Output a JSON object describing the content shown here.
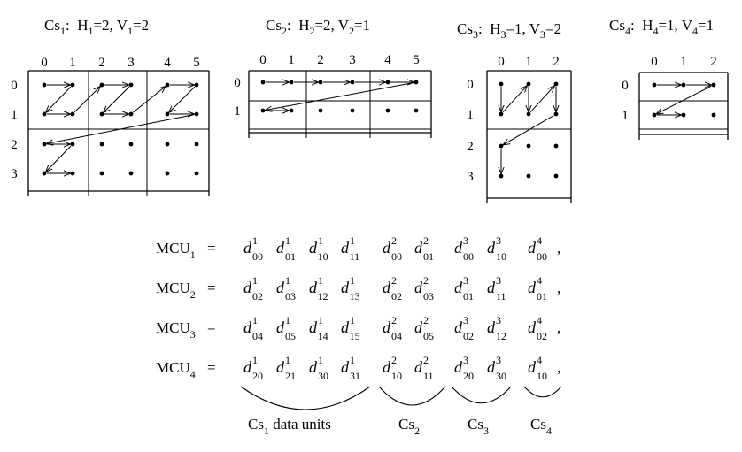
{
  "components": [
    {
      "id": "cs1",
      "title": {
        "base": "Cs",
        "idx": "1",
        "H": "2",
        "V": "2"
      },
      "col_labels": [
        "0",
        "1",
        "2",
        "3",
        "4",
        "5"
      ],
      "row_labels": [
        "0",
        "1",
        "2",
        "3"
      ]
    },
    {
      "id": "cs2",
      "title": {
        "base": "Cs",
        "idx": "2",
        "H": "2",
        "V": "1"
      },
      "col_labels": [
        "0",
        "1",
        "2",
        "3",
        "4",
        "5"
      ],
      "row_labels": [
        "0",
        "1"
      ]
    },
    {
      "id": "cs3",
      "title": {
        "base": "Cs",
        "idx": "3",
        "H": "1",
        "V": "2"
      },
      "col_labels": [
        "0",
        "1",
        "2"
      ],
      "row_labels": [
        "0",
        "1",
        "2",
        "3"
      ]
    },
    {
      "id": "cs4",
      "title": {
        "base": "Cs",
        "idx": "4",
        "H": "1",
        "V": "1"
      },
      "col_labels": [
        "0",
        "1",
        "2"
      ],
      "row_labels": [
        "0",
        "1"
      ]
    }
  ],
  "title_strings": {
    "H": "H",
    "V": "V",
    "colon": ":",
    "eq": "=",
    "comma": ","
  },
  "mcu": [
    {
      "name": "MCU",
      "idx": "1",
      "groups": [
        [
          {
            "sup": "1",
            "sub": "00"
          },
          {
            "sup": "1",
            "sub": "01"
          },
          {
            "sup": "1",
            "sub": "10"
          },
          {
            "sup": "1",
            "sub": "11"
          }
        ],
        [
          {
            "sup": "2",
            "sub": "00"
          },
          {
            "sup": "2",
            "sub": "01"
          }
        ],
        [
          {
            "sup": "3",
            "sub": "00"
          },
          {
            "sup": "3",
            "sub": "10"
          }
        ],
        [
          {
            "sup": "4",
            "sub": "00"
          }
        ]
      ]
    },
    {
      "name": "MCU",
      "idx": "2",
      "groups": [
        [
          {
            "sup": "1",
            "sub": "02"
          },
          {
            "sup": "1",
            "sub": "03"
          },
          {
            "sup": "1",
            "sub": "12"
          },
          {
            "sup": "1",
            "sub": "13"
          }
        ],
        [
          {
            "sup": "2",
            "sub": "02"
          },
          {
            "sup": "2",
            "sub": "03"
          }
        ],
        [
          {
            "sup": "3",
            "sub": "01"
          },
          {
            "sup": "3",
            "sub": "11"
          }
        ],
        [
          {
            "sup": "4",
            "sub": "01"
          }
        ]
      ]
    },
    {
      "name": "MCU",
      "idx": "3",
      "groups": [
        [
          {
            "sup": "1",
            "sub": "04"
          },
          {
            "sup": "1",
            "sub": "05"
          },
          {
            "sup": "1",
            "sub": "14"
          },
          {
            "sup": "1",
            "sub": "15"
          }
        ],
        [
          {
            "sup": "2",
            "sub": "04"
          },
          {
            "sup": "2",
            "sub": "05"
          }
        ],
        [
          {
            "sup": "3",
            "sub": "02"
          },
          {
            "sup": "3",
            "sub": "12"
          }
        ],
        [
          {
            "sup": "4",
            "sub": "02"
          }
        ]
      ]
    },
    {
      "name": "MCU",
      "idx": "4",
      "groups": [
        [
          {
            "sup": "1",
            "sub": "20"
          },
          {
            "sup": "1",
            "sub": "21"
          },
          {
            "sup": "1",
            "sub": "30"
          },
          {
            "sup": "1",
            "sub": "31"
          }
        ],
        [
          {
            "sup": "2",
            "sub": "10"
          },
          {
            "sup": "2",
            "sub": "11"
          }
        ],
        [
          {
            "sup": "3",
            "sub": "20"
          },
          {
            "sup": "3",
            "sub": "30"
          }
        ],
        [
          {
            "sup": "4",
            "sub": "10"
          }
        ]
      ]
    }
  ],
  "d_symbol": "d",
  "equals": "=",
  "comma": ",",
  "braces": [
    {
      "base": "Cs",
      "idx": "1",
      "suffix": " data units"
    },
    {
      "base": "Cs",
      "idx": "2",
      "suffix": ""
    },
    {
      "base": "Cs",
      "idx": "3",
      "suffix": ""
    },
    {
      "base": "Cs",
      "idx": "4",
      "suffix": ""
    }
  ]
}
